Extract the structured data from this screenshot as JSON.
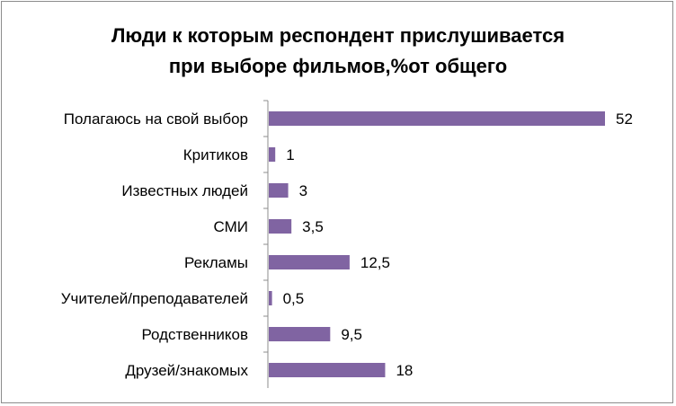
{
  "chart_data": {
    "type": "bar",
    "orientation": "horizontal",
    "title_lines": [
      "Люди к которым респондент прислушивается",
      "при выборе фильмов,%от общего"
    ],
    "categories": [
      "Полагаюсь на свой выбор",
      "Критиков",
      "Известных людей",
      "СМИ",
      "Рекламы",
      "Учителей/преподавателей",
      "Родственников",
      "Друзей/знакомых"
    ],
    "values": [
      52,
      1,
      3,
      3.5,
      12.5,
      0.5,
      9.5,
      18
    ],
    "value_labels": [
      "52",
      "1",
      "3",
      "3,5",
      "12,5",
      "0,5",
      "9,5",
      "18"
    ],
    "xlim": [
      0,
      52
    ],
    "grid": false,
    "legend": "none",
    "bar_color": "#8064a2"
  }
}
